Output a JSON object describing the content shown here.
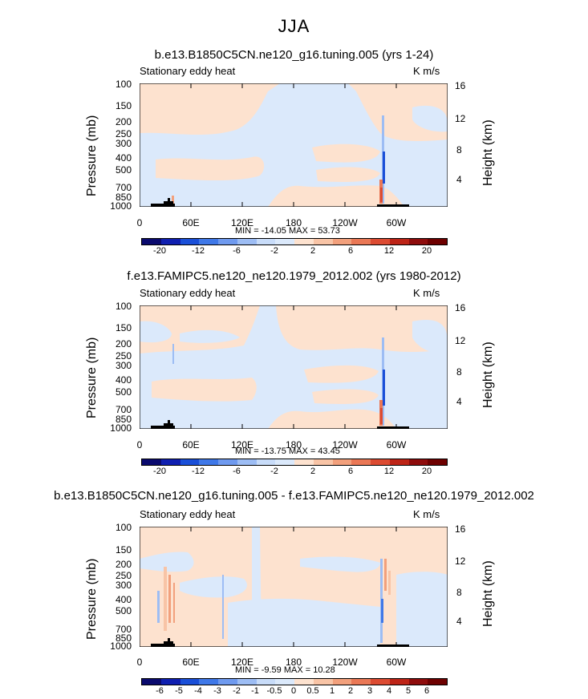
{
  "suptitle": "JJA",
  "chart_data": [
    {
      "type": "heatmap",
      "title": "b.e13.B1850C5CN.ne120_g16.tuning.005 (yrs 1-24)",
      "left_label": "Stationary eddy heat",
      "units": "K m/s",
      "ylabel": "Pressure (mb)",
      "ylabel_right": "Height (km)",
      "y_ticks": [
        "100",
        "150",
        "200",
        "250",
        "300",
        "400",
        "500",
        "700",
        "850",
        "1000"
      ],
      "y_ticks_right": [
        "16",
        "12",
        "8",
        "4"
      ],
      "x_ticks": [
        "0",
        "60E",
        "120E",
        "180",
        "120W",
        "60W"
      ],
      "min_max": "MIN = -14.05   MAX =  53.73",
      "colorbar_labels": [
        "-20",
        "-12",
        "-6",
        "-2",
        "2",
        "6",
        "12",
        "20"
      ]
    },
    {
      "type": "heatmap",
      "title": "f.e13.FAMIPC5.ne120_ne120.1979_2012.002 (yrs 1980-2012)",
      "left_label": "Stationary eddy heat",
      "units": "K m/s",
      "ylabel": "Pressure (mb)",
      "ylabel_right": "Height (km)",
      "y_ticks": [
        "100",
        "150",
        "200",
        "250",
        "300",
        "400",
        "500",
        "700",
        "850",
        "1000"
      ],
      "y_ticks_right": [
        "16",
        "12",
        "8",
        "4"
      ],
      "x_ticks": [
        "0",
        "60E",
        "120E",
        "180",
        "120W",
        "60W"
      ],
      "min_max": "MIN = -13.75   MAX =  43.45",
      "colorbar_labels": [
        "-20",
        "-12",
        "-6",
        "-2",
        "2",
        "6",
        "12",
        "20"
      ]
    },
    {
      "type": "heatmap",
      "title": "b.e13.B1850C5CN.ne120_g16.tuning.005 - f.e13.FAMIPC5.ne120_ne120.1979_2012.002",
      "left_label": "Stationary eddy heat",
      "units": "K m/s",
      "ylabel": "Pressure (mb)",
      "ylabel_right": "Height (km)",
      "y_ticks": [
        "100",
        "150",
        "200",
        "250",
        "300",
        "400",
        "500",
        "700",
        "850",
        "1000"
      ],
      "y_ticks_right": [
        "16",
        "12",
        "8",
        "4"
      ],
      "x_ticks": [
        "0",
        "60E",
        "120E",
        "180",
        "120W",
        "60W"
      ],
      "min_max": "MIN =  -9.59   MAX =  10.28",
      "colorbar_labels": [
        "-6",
        "-5",
        "-4",
        "-3",
        "-2",
        "-1",
        "-0.5",
        "0",
        "0.5",
        "1",
        "2",
        "3",
        "4",
        "5",
        "6"
      ]
    }
  ],
  "colors": {
    "palette": [
      "#0a0a6e",
      "#0f1fb0",
      "#1a4fd8",
      "#3f78e8",
      "#6f9aef",
      "#9dbdf4",
      "#c8dcf9",
      "#dbe9fb",
      "#fde2cf",
      "#f8c4a6",
      "#f2a07c",
      "#ea7856",
      "#dc4b32",
      "#bd2417",
      "#8e0c0c",
      "#6e0000"
    ],
    "light_blue": "#dbe9fb",
    "light_peach": "#fde2cf",
    "terrain": "#000000"
  }
}
